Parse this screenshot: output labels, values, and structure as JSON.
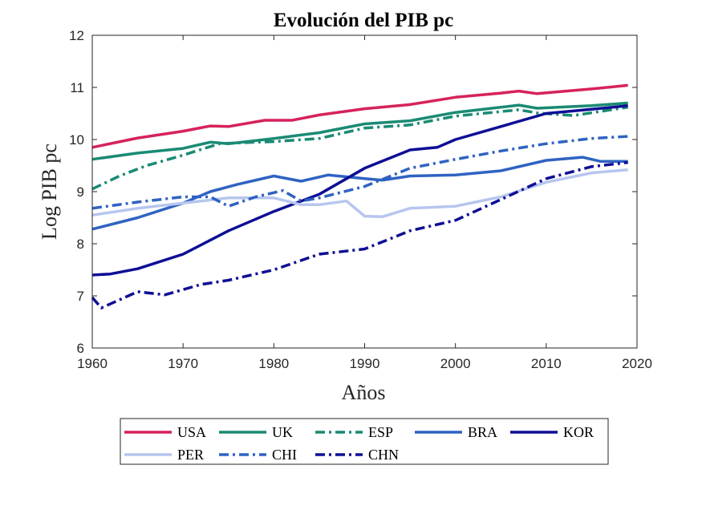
{
  "chart_data": {
    "type": "line",
    "title": "Evolución del PIB pc",
    "xlabel": "Años",
    "ylabel": "Log PIB pc",
    "xlim": [
      1960,
      2020
    ],
    "ylim": [
      6,
      12
    ],
    "xticks": [
      "1960",
      "1970",
      "1980",
      "1990",
      "2000",
      "2010",
      "2020"
    ],
    "yticks": [
      "6",
      "7",
      "8",
      "9",
      "10",
      "11",
      "12"
    ],
    "grid": false,
    "legend_position": "bottom",
    "series": [
      {
        "name": "USA",
        "color": "#d6225a",
        "dash": "solid",
        "x": [
          1960,
          1965,
          1970,
          1973,
          1975,
          1979,
          1982,
          1985,
          1990,
          1995,
          2000,
          2005,
          2007,
          2009,
          2015,
          2019
        ],
        "y": [
          9.85,
          10.03,
          10.16,
          10.26,
          10.25,
          10.37,
          10.37,
          10.47,
          10.59,
          10.67,
          10.81,
          10.89,
          10.93,
          10.88,
          10.97,
          11.04
        ]
      },
      {
        "name": "UK",
        "color": "#1a8a74",
        "dash": "solid",
        "x": [
          1960,
          1965,
          1970,
          1973,
          1975,
          1980,
          1985,
          1990,
          1995,
          2000,
          2007,
          2009,
          2015,
          2019
        ],
        "y": [
          9.62,
          9.74,
          9.83,
          9.95,
          9.92,
          10.02,
          10.13,
          10.3,
          10.36,
          10.52,
          10.66,
          10.6,
          10.65,
          10.7
        ]
      },
      {
        "name": "ESP",
        "color": "#1a8a74",
        "dash": "dashdot",
        "x": [
          1960,
          1963,
          1966,
          1970,
          1974,
          1978,
          1980,
          1985,
          1990,
          1995,
          2000,
          2007,
          2009,
          2013,
          2019
        ],
        "y": [
          9.05,
          9.3,
          9.5,
          9.7,
          9.92,
          9.95,
          9.96,
          10.02,
          10.22,
          10.28,
          10.45,
          10.57,
          10.51,
          10.46,
          10.62
        ]
      },
      {
        "name": "BRA",
        "color": "#2f63c2",
        "dash": "solid",
        "x": [
          1960,
          1965,
          1970,
          1973,
          1976,
          1980,
          1983,
          1986,
          1990,
          1992,
          1995,
          2000,
          2005,
          2010,
          2014,
          2016,
          2019
        ],
        "y": [
          8.28,
          8.5,
          8.78,
          9.0,
          9.14,
          9.3,
          9.2,
          9.32,
          9.25,
          9.22,
          9.3,
          9.32,
          9.4,
          9.6,
          9.66,
          9.58,
          9.58
        ]
      },
      {
        "name": "KOR",
        "color": "#0e0e96",
        "dash": "solid",
        "x": [
          1960,
          1962,
          1965,
          1970,
          1975,
          1980,
          1985,
          1990,
          1995,
          1998,
          2000,
          2005,
          2010,
          2015,
          2019
        ],
        "y": [
          7.4,
          7.42,
          7.52,
          7.8,
          8.25,
          8.62,
          8.95,
          9.45,
          9.8,
          9.85,
          10.0,
          10.25,
          10.5,
          10.58,
          10.65
        ]
      },
      {
        "name": "PER",
        "color": "#b7c6ee",
        "dash": "solid",
        "x": [
          1960,
          1965,
          1970,
          1975,
          1980,
          1983,
          1985,
          1988,
          1990,
          1992,
          1995,
          2000,
          2005,
          2010,
          2015,
          2019
        ],
        "y": [
          8.55,
          8.68,
          8.78,
          8.88,
          8.88,
          8.75,
          8.75,
          8.82,
          8.53,
          8.52,
          8.68,
          8.72,
          8.9,
          9.18,
          9.36,
          9.42
        ]
      },
      {
        "name": "CHI",
        "color": "#2f63c2",
        "dash": "dashdot",
        "x": [
          1960,
          1965,
          1970,
          1973,
          1975,
          1978,
          1981,
          1983,
          1985,
          1990,
          1995,
          2000,
          2005,
          2010,
          2015,
          2019
        ],
        "y": [
          8.68,
          8.8,
          8.9,
          8.9,
          8.72,
          8.9,
          9.02,
          8.82,
          8.88,
          9.1,
          9.45,
          9.62,
          9.78,
          9.92,
          10.02,
          10.06
        ]
      },
      {
        "name": "CHN",
        "color": "#0e0e96",
        "dash": "dashdot",
        "x": [
          1960,
          1961,
          1965,
          1968,
          1972,
          1975,
          1980,
          1985,
          1990,
          1995,
          2000,
          2005,
          2010,
          2015,
          2019
        ],
        "y": [
          6.97,
          6.77,
          7.08,
          7.02,
          7.22,
          7.3,
          7.5,
          7.8,
          7.9,
          8.25,
          8.45,
          8.85,
          9.25,
          9.48,
          9.56
        ]
      }
    ]
  }
}
